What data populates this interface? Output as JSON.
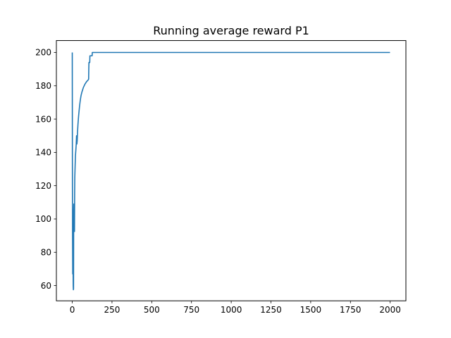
{
  "chart_data": {
    "type": "line",
    "title": "Running average reward P1",
    "xlabel": "",
    "ylabel": "",
    "xlim": [
      -99.95,
      2098.95
    ],
    "ylim": [
      50.85,
      207.15
    ],
    "grid": false,
    "x_ticks": [
      0,
      250,
      500,
      750,
      1000,
      1250,
      1500,
      1750,
      2000
    ],
    "y_ticks": [
      60,
      80,
      100,
      120,
      140,
      160,
      180,
      200
    ],
    "series": [
      {
        "color": "#1f77b4",
        "points": [
          [
            0,
            200
          ],
          [
            1,
            120
          ],
          [
            2,
            88
          ],
          [
            3,
            67
          ],
          [
            4,
            80
          ],
          [
            5,
            72
          ],
          [
            6,
            60
          ],
          [
            7,
            57.5
          ],
          [
            8,
            58
          ],
          [
            9,
            105
          ],
          [
            10,
            109
          ],
          [
            11,
            95
          ],
          [
            12,
            100
          ],
          [
            13,
            101
          ],
          [
            14,
            92.5
          ],
          [
            15,
            115
          ],
          [
            16,
            125
          ],
          [
            18,
            132
          ],
          [
            20,
            138
          ],
          [
            23,
            142
          ],
          [
            25,
            145
          ],
          [
            27,
            150
          ],
          [
            29,
            145
          ],
          [
            31,
            147
          ],
          [
            33,
            152
          ],
          [
            36,
            157
          ],
          [
            40,
            162
          ],
          [
            45,
            167
          ],
          [
            50,
            171
          ],
          [
            55,
            174
          ],
          [
            60,
            176
          ],
          [
            70,
            179
          ],
          [
            80,
            181
          ],
          [
            90,
            182.5
          ],
          [
            100,
            183.5
          ],
          [
            103,
            184
          ],
          [
            104,
            190
          ],
          [
            105,
            194
          ],
          [
            110,
            194
          ],
          [
            111,
            198
          ],
          [
            125,
            198
          ],
          [
            126,
            200
          ],
          [
            1999,
            200
          ]
        ]
      }
    ]
  }
}
